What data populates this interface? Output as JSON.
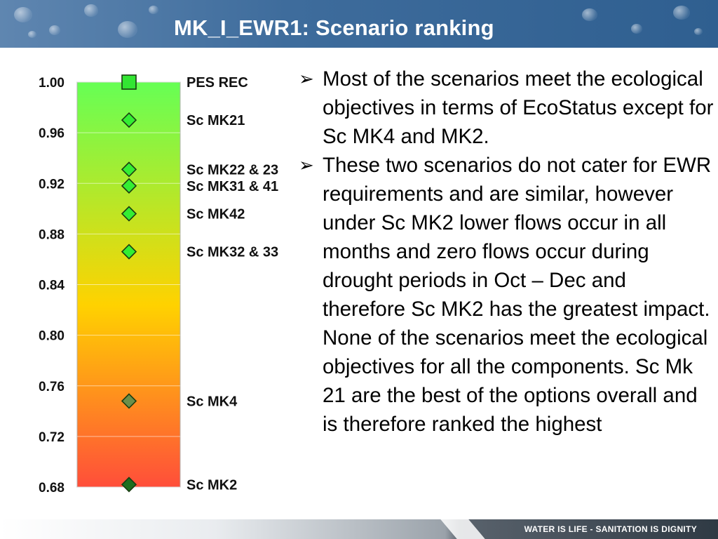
{
  "slide": {
    "title": "MK_I_EWR1:  Scenario ranking",
    "footer": "WATER IS LIFE - SANITATION IS DIGNITY"
  },
  "colors": {
    "header": "#3e6c9c",
    "gradient_top": "#66ff55",
    "gradient_mid": "#ffd200",
    "gradient_bottom": "#ff4e3a",
    "marker_top": "#33e633",
    "marker_bright": "#33ee33",
    "marker_olive": "#6b8f4a",
    "marker_dark": "#1f6e1f"
  },
  "chart_data": {
    "type": "scatter",
    "ylim": [
      0.68,
      1.0
    ],
    "ticks": [
      "1.00",
      "0.96",
      "0.92",
      "0.88",
      "0.84",
      "0.80",
      "0.76",
      "0.72",
      "0.68"
    ],
    "points": [
      {
        "label": "PES REC",
        "value": 1.0,
        "marker": "square",
        "color": "#33e633"
      },
      {
        "label": "Sc MK21",
        "value": 0.97,
        "marker": "diamond",
        "color": "#33ee33"
      },
      {
        "label": "Sc MK22 & 23",
        "value": 0.931,
        "marker": "diamond",
        "color": "#33ee33"
      },
      {
        "label": "Sc MK31 & 41",
        "value": 0.918,
        "marker": "diamond",
        "color": "#33ee33"
      },
      {
        "label": "Sc MK42",
        "value": 0.896,
        "marker": "diamond",
        "color": "#33ee33"
      },
      {
        "label": "Sc MK32 & 33",
        "value": 0.866,
        "marker": "diamond",
        "color": "#33ee33"
      },
      {
        "label": "Sc MK4",
        "value": 0.748,
        "marker": "diamond",
        "color": "#6b8f4a"
      },
      {
        "label": "Sc MK2",
        "value": 0.682,
        "marker": "diamond",
        "color": "#1f6e1f"
      }
    ]
  },
  "bullets": [
    "Most of the scenarios meet the ecological objectives in terms of EcoStatus except for Sc MK4 and MK2.",
    "These two scenarios do not cater for EWR requirements and are similar, however under Sc MK2 lower flows occur in all months and zero flows occur during drought periods in Oct – Dec and therefore Sc MK2 has the greatest impact. None of the scenarios meet the ecological objectives for all the components. Sc Mk 21 are the best of the options overall and is therefore ranked the highest"
  ]
}
